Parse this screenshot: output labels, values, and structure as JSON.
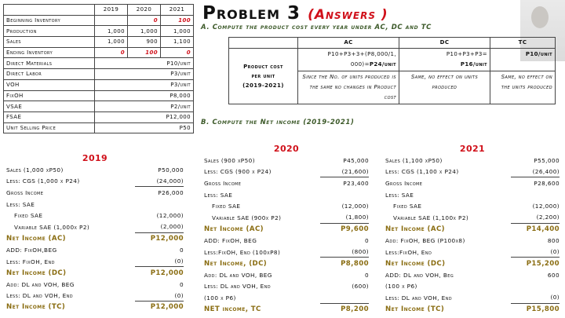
{
  "inputs": {
    "years": [
      "2019",
      "2020",
      "2021"
    ],
    "rows": [
      {
        "label": "Beginning Inventory",
        "values": [
          "",
          "0",
          "100"
        ],
        "highlight": true
      },
      {
        "label": "Production",
        "values": [
          "1,000",
          "1,000",
          "1,000"
        ]
      },
      {
        "label": "Sales",
        "values": [
          "1,000",
          "900",
          "1,100"
        ]
      },
      {
        "label": "Ending Inventory",
        "values": [
          "0",
          "100",
          "0"
        ],
        "highlight": true
      }
    ],
    "costs": [
      {
        "label": "Direct Materials",
        "value": "P10/unit"
      },
      {
        "label": "Direct Labor",
        "value": "P3/unit"
      },
      {
        "label": "VOH",
        "value": "P3/unit"
      },
      {
        "label": "FixOH",
        "value": "P8,000"
      },
      {
        "label": "VSAE",
        "value": "P2/unit"
      },
      {
        "label": "FSAE",
        "value": "P12,000"
      },
      {
        "label": "Unit Selling Price",
        "value": "P50"
      }
    ]
  },
  "title": {
    "main": "Problem 3",
    "answers": "(Answers )"
  },
  "part_a": "A. Compute the product cost every year under AC, DC and TC",
  "product_cost": {
    "headers": [
      "AC",
      "DC",
      "TC"
    ],
    "row_label": [
      "Product cost",
      "per unit",
      "(2019-2021)"
    ],
    "ac": [
      "P10+P3+3+(P8,000/1,",
      "000)=",
      "P24/unit"
    ],
    "dc": [
      "P10+P3+P3=",
      "P16/unit"
    ],
    "tc": "P10/unit",
    "notes": [
      "Since the No. of units produced is the same no changes in Product cost",
      "Same, no effect on units produced",
      "Same, no effect on the units produced"
    ]
  },
  "part_b": "B. Compute the Net income (2019-2021)",
  "colors": {
    "accent_red": "#d0101a",
    "net_income_gold": "#8a6d12",
    "heading_green": "#3d5a2a"
  },
  "statements": [
    {
      "year": "2019",
      "rows": [
        {
          "label": "Sales (1,000 xP50)",
          "value": "P50,000"
        },
        {
          "label": "Less: CGS (1,000 x P24)",
          "value": "(24,000)",
          "ul": true
        },
        {
          "label": "Gross Income",
          "value": "P26,000"
        },
        {
          "label": "Less: SAE",
          "value": ""
        },
        {
          "label": "Fixed SAE",
          "value": "(12,000)",
          "ind": true
        },
        {
          "label": "Variable SAE (1,000x P2)",
          "value": "(2,000)",
          "ind": true,
          "ul": true
        },
        {
          "label": "Net Income (AC)",
          "value": "P12,000",
          "tot": true
        },
        {
          "label": "ADD: FixOH,BEG",
          "value": "0"
        },
        {
          "label": "Less: FixOH, End",
          "value": "(0)",
          "ul": true
        },
        {
          "label": "Net Income (DC)",
          "value": "P12,000",
          "tot": true
        },
        {
          "label": "Add: DL and VOH, BEG",
          "value": "0"
        },
        {
          "label": "Less: DL and VOH, End",
          "value": "(0)",
          "ul": true
        },
        {
          "label": "Net Income (TC)",
          "value": "P12,000",
          "tot": true
        }
      ]
    },
    {
      "year": "2020",
      "rows": [
        {
          "label": "Sales (900 xP50)",
          "value": "P45,000"
        },
        {
          "label": "Less: CGS (900 x P24)",
          "value": "(21,600)",
          "ul": true
        },
        {
          "label": "Gross Income",
          "value": "P23,400"
        },
        {
          "label": "Less: SAE",
          "value": ""
        },
        {
          "label": "Fixed SAE",
          "value": "(12,000)",
          "ind": true
        },
        {
          "label": "Variable SAE (900x P2)",
          "value": "(1,800)",
          "ind": true,
          "ul": true
        },
        {
          "label": "Net Income (AC)",
          "value": "P9,600",
          "tot": true
        },
        {
          "label": "ADD: FixOH, BEG",
          "value": "0"
        },
        {
          "label": "Less:FixOH, End (100xP8)",
          "value": "(800)",
          "ul": true
        },
        {
          "label": "Net Income, (DC)",
          "value": "P8,800",
          "tot": true
        },
        {
          "label": "Add: DL and VOH, BEG",
          "value": "0"
        },
        {
          "label": "Less: DL and VOH, End",
          "value": "(600)"
        },
        {
          "label": "(100 x P6)",
          "value": "",
          "ul": true
        },
        {
          "label": "NET income, TC",
          "value": "P8,200",
          "tot": true
        }
      ]
    },
    {
      "year": "2021",
      "rows": [
        {
          "label": "Sales (1,100 xP50)",
          "value": "P55,000"
        },
        {
          "label": "Less: CGS (1,100 x P24)",
          "value": "(26,400)",
          "ul": true
        },
        {
          "label": "Gross Income",
          "value": "P28,600"
        },
        {
          "label": "Less: SAE",
          "value": ""
        },
        {
          "label": "Fixed SAE",
          "value": "(12,000)",
          "ind": true
        },
        {
          "label": "Variable SAE (1,100x P2)",
          "value": "(2,200)",
          "ind": true,
          "ul": true
        },
        {
          "label": "Net Income (AC)",
          "value": "P14,400",
          "tot": true
        },
        {
          "label": "Add: FixOH, BEG (P100x8)",
          "value": "800"
        },
        {
          "label": "Less:FixOH, End",
          "value": "(0)",
          "ul": true
        },
        {
          "label": "Net Income (DC)",
          "value": "P15,200",
          "tot": true
        },
        {
          "label": "ADD: DL and VOH, Beg",
          "value": "600"
        },
        {
          "label": "(100 x P6)",
          "value": ""
        },
        {
          "label": "Less: DL and VOH, End",
          "value": "(0)",
          "ul": true
        },
        {
          "label": "Net Income (TC)",
          "value": "P15,800",
          "tot": true
        }
      ]
    }
  ]
}
